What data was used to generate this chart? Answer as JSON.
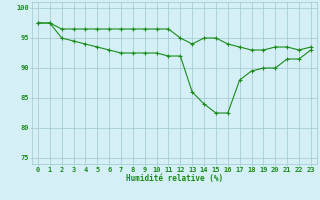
{
  "line1_x": [
    0,
    1,
    2,
    3,
    4,
    5,
    6,
    7,
    8,
    9,
    10,
    11,
    12,
    13,
    14,
    15,
    16,
    17,
    18,
    19,
    20,
    21,
    22,
    23
  ],
  "line1_y": [
    97.5,
    97.5,
    96.5,
    96.5,
    96.5,
    96.5,
    96.5,
    96.5,
    96.5,
    96.5,
    96.5,
    96.5,
    95.0,
    94.0,
    95.0,
    95.0,
    94.0,
    93.5,
    93.0,
    93.0,
    93.5,
    93.5,
    93.0,
    93.5
  ],
  "line2_x": [
    0,
    1,
    2,
    3,
    4,
    5,
    6,
    7,
    8,
    9,
    10,
    11,
    12,
    13,
    14,
    15,
    16,
    17,
    18,
    19,
    20,
    21,
    22,
    23
  ],
  "line2_y": [
    97.5,
    97.5,
    95.0,
    94.5,
    94.0,
    93.5,
    93.0,
    92.5,
    92.5,
    92.5,
    92.5,
    92.0,
    92.0,
    86.0,
    84.0,
    82.5,
    82.5,
    88.0,
    89.5,
    90.0,
    90.0,
    91.5,
    91.5,
    93.0
  ],
  "line_color": "#1a8c1a",
  "bg_color": "#d4eff5",
  "grid_color": "#a0c8d0",
  "xlabel": "Humidité relative (%)",
  "ylim": [
    74,
    101
  ],
  "xlim": [
    -0.5,
    23.5
  ],
  "yticks": [
    75,
    80,
    85,
    90,
    95,
    100
  ],
  "xticks": [
    0,
    1,
    2,
    3,
    4,
    5,
    6,
    7,
    8,
    9,
    10,
    11,
    12,
    13,
    14,
    15,
    16,
    17,
    18,
    19,
    20,
    21,
    22,
    23
  ],
  "label_fontsize": 5.5,
  "tick_fontsize": 5.0,
  "marker": "+",
  "marker_size": 3,
  "linewidth": 0.8
}
